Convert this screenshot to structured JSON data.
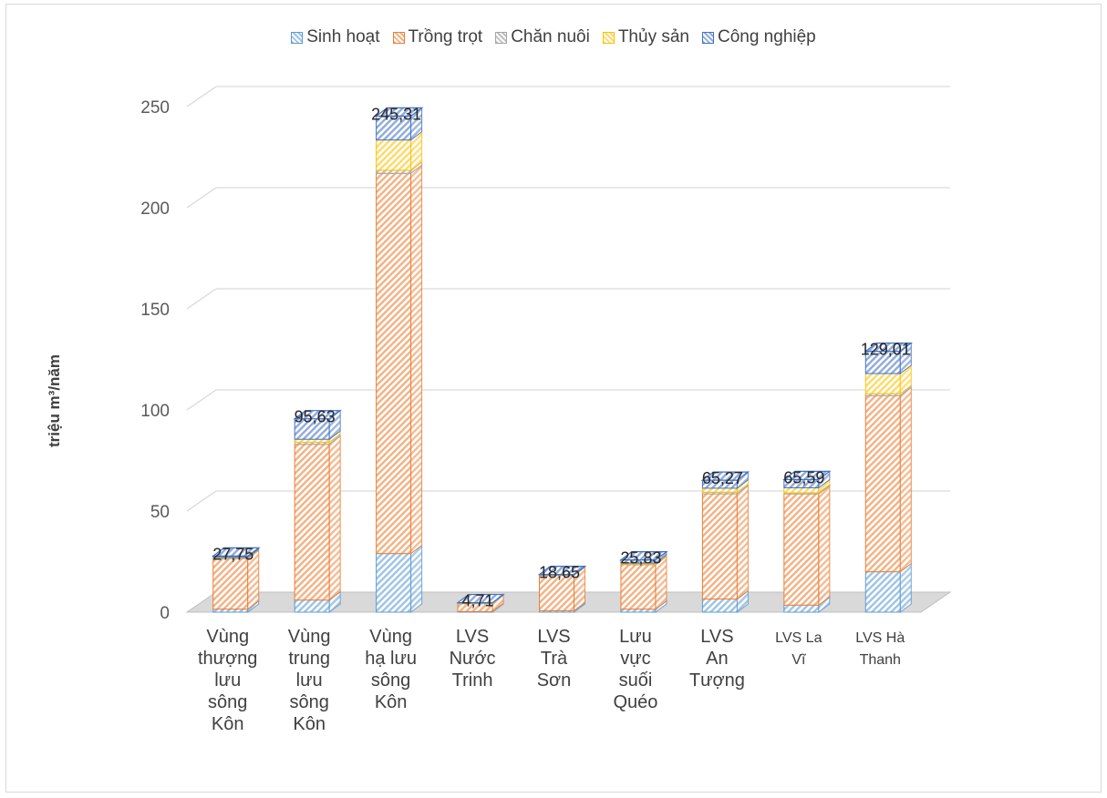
{
  "chart_data": {
    "type": "bar",
    "stacked": true,
    "three_d": true,
    "title": "",
    "xlabel": "",
    "ylabel": "triệu m³/năm",
    "ylim": [
      0,
      250
    ],
    "yticks": [
      "0",
      "50",
      "100",
      "150",
      "200",
      "250"
    ],
    "grid": true,
    "legend_position": "top",
    "categories": [
      [
        "Vùng",
        "thượng",
        "lưu",
        "sông",
        "Kôn"
      ],
      [
        "Vùng",
        "trung",
        "lưu",
        "sông",
        "Kôn"
      ],
      [
        "Vùng",
        "hạ lưu",
        "sông",
        "Kôn"
      ],
      [
        "LVS",
        "Nước",
        "Trinh"
      ],
      [
        "LVS",
        "Trà",
        "Sơn"
      ],
      [
        "Lưu",
        "vực",
        "suối",
        "Quéo"
      ],
      [
        "LVS",
        "An",
        "Tượng"
      ],
      [
        "LVS La",
        "Vĩ"
      ],
      [
        "LVS Hà",
        "Thanh"
      ]
    ],
    "series": [
      {
        "name": "Sinh hoạt",
        "color": "#9dc3e6",
        "stroke": "#5b9bd5",
        "values": [
          1.5,
          6,
          29,
          0.3,
          0.7,
          1.5,
          6.5,
          3.5,
          20
        ]
      },
      {
        "name": "Trồng trọt",
        "color": "#f4b183",
        "stroke": "#ed7d31",
        "values": [
          25,
          77,
          188,
          4,
          17.5,
          22,
          52,
          55,
          87
        ]
      },
      {
        "name": "Chăn nuôi",
        "color": "#bfbfbf",
        "stroke": "#a5a5a5",
        "values": [
          0.5,
          1,
          1.5,
          0.1,
          0.2,
          0.3,
          0.8,
          0.5,
          1
        ]
      },
      {
        "name": "Thủy sản",
        "color": "#ffd966",
        "stroke": "#ffc000",
        "values": [
          0.2,
          1.5,
          15,
          0.1,
          0.1,
          0.5,
          2,
          2.5,
          10
        ]
      },
      {
        "name": "Công nghiệp",
        "color": "#8faadc",
        "stroke": "#4472c4",
        "values": [
          0.55,
          10.13,
          11.81,
          0.21,
          0.15,
          1.53,
          3.97,
          4.09,
          11.01
        ]
      }
    ],
    "totals": [
      "27,75",
      "95,63",
      "245,31",
      "4,71",
      "18,65",
      "25,83",
      "65,27",
      "65,59",
      "129,01"
    ],
    "small_label_categories": [
      7,
      8
    ]
  }
}
